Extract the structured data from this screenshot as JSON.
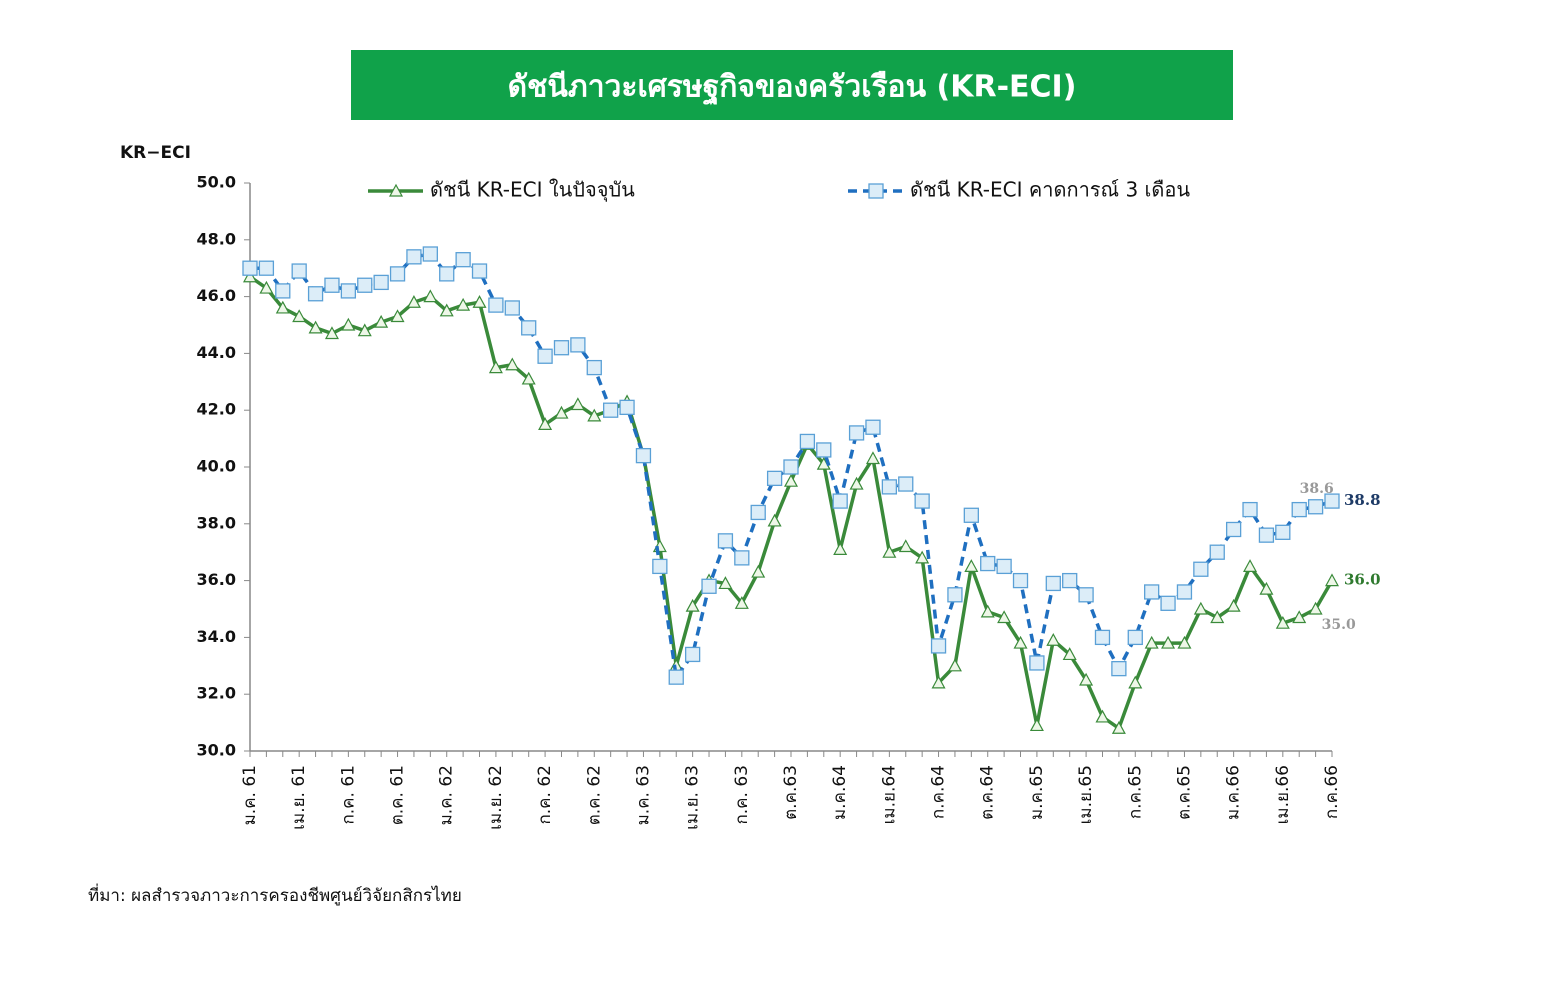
{
  "chart_data": {
    "type": "line",
    "title": "ดัชนีภาวะเศรษฐกิจของครัวเรือน (KR-ECI)",
    "y_label": "KR−ECI",
    "source": "ที่มา: ผลสำรวจภาวะการครองชีพศูนย์วิจัยกสิกรไทย",
    "legend": "top",
    "categories": [
      "ม.ค. 61",
      null,
      null,
      "เม.ย. 61",
      null,
      null,
      "ก.ค. 61",
      null,
      null,
      "ต.ค. 61",
      null,
      null,
      "ม.ค. 62",
      null,
      null,
      "เม.ย. 62",
      null,
      null,
      "ก.ค. 62",
      null,
      null,
      "ต.ค. 62",
      null,
      null,
      "ม.ค. 63",
      null,
      null,
      "เม.ย. 63",
      null,
      null,
      "ก.ค. 63",
      null,
      null,
      "ต.ค.63",
      null,
      null,
      "ม.ค.64",
      null,
      null,
      "เม.ย.64",
      null,
      null,
      "ก.ค.64",
      null,
      null,
      "ต.ค.64",
      null,
      null,
      "ม.ค.65",
      null,
      null,
      "เม.ย.65",
      null,
      null,
      "ก.ค.65",
      null,
      null,
      "ต.ค.65",
      null,
      null,
      "ม.ค.66",
      null,
      null,
      "เม.ย.66",
      null,
      null,
      "ก.ค.66"
    ],
    "series": [
      {
        "name": "ดัชนี KR-ECI ในปัจจุบัน",
        "color": "#3a8a3a",
        "marker": "triangle",
        "dashed": false,
        "values": [
          46.7,
          46.3,
          45.6,
          45.3,
          44.9,
          44.7,
          45.0,
          44.8,
          45.1,
          45.3,
          45.8,
          46.0,
          45.5,
          45.7,
          45.8,
          43.5,
          43.6,
          43.1,
          41.5,
          41.9,
          42.2,
          41.8,
          42.0,
          42.3,
          40.4,
          37.2,
          33.0,
          35.1,
          36.0,
          35.9,
          35.2,
          36.3,
          38.1,
          39.5,
          40.8,
          40.1,
          37.1,
          39.4,
          40.3,
          37.0,
          37.2,
          36.8,
          32.4,
          33.0,
          36.5,
          34.9,
          34.7,
          33.8,
          30.9,
          33.9,
          33.4,
          32.5,
          31.2,
          30.8,
          32.4,
          33.8,
          33.8,
          33.8,
          35.0,
          34.7,
          35.1,
          36.5,
          35.7,
          34.5,
          34.7,
          35.0,
          36.0
        ],
        "value_labels": [
          null,
          null,
          null,
          null,
          null,
          null,
          null,
          null,
          null,
          null,
          null,
          null,
          null,
          null,
          null,
          null,
          null,
          null,
          null,
          null,
          null,
          null,
          null,
          null,
          null,
          null,
          null,
          null,
          null,
          null,
          null,
          null,
          null,
          null,
          null,
          null,
          null,
          null,
          null,
          null,
          null,
          null,
          null,
          null,
          null,
          null,
          null,
          null,
          null,
          null,
          null,
          null,
          null,
          null,
          null,
          null,
          null,
          null,
          null,
          null,
          null,
          null,
          null,
          null,
          null,
          "35.0",
          "36.0"
        ]
      },
      {
        "name": "ดัชนี KR-ECI คาดการณ์ 3 เดือน",
        "color": "#1f6fc0",
        "marker": "square",
        "dashed": true,
        "values": [
          47.0,
          47.0,
          46.2,
          46.9,
          46.1,
          46.4,
          46.2,
          46.4,
          46.5,
          46.8,
          47.4,
          47.5,
          46.8,
          47.3,
          46.9,
          45.7,
          45.6,
          44.9,
          43.9,
          44.2,
          44.3,
          43.5,
          42.0,
          42.1,
          40.4,
          36.5,
          32.6,
          33.4,
          35.8,
          37.4,
          36.8,
          38.4,
          39.6,
          40.0,
          40.9,
          40.6,
          38.8,
          41.2,
          41.4,
          39.3,
          39.4,
          38.8,
          33.7,
          35.5,
          38.3,
          36.6,
          36.5,
          36.0,
          33.1,
          35.9,
          36.0,
          35.5,
          34.0,
          32.9,
          34.0,
          35.6,
          35.2,
          35.6,
          36.4,
          37.0,
          37.8,
          38.5,
          37.6,
          37.7,
          38.5,
          38.6,
          38.8
        ],
        "value_labels": [
          null,
          null,
          null,
          null,
          null,
          null,
          null,
          null,
          null,
          null,
          null,
          null,
          null,
          null,
          null,
          null,
          null,
          null,
          null,
          null,
          null,
          null,
          null,
          null,
          null,
          null,
          null,
          null,
          null,
          null,
          null,
          null,
          null,
          null,
          null,
          null,
          null,
          null,
          null,
          null,
          null,
          null,
          null,
          null,
          null,
          null,
          null,
          null,
          null,
          null,
          null,
          null,
          null,
          null,
          null,
          null,
          null,
          null,
          null,
          null,
          null,
          null,
          null,
          null,
          null,
          "38.6",
          "38.8"
        ]
      }
    ],
    "ylim": [
      30,
      50
    ],
    "yticks": [
      {
        "value": 30,
        "label": "30.0"
      },
      {
        "value": 32,
        "label": "32.0"
      },
      {
        "value": 34,
        "label": "34.0"
      },
      {
        "value": 36,
        "label": "36.0"
      },
      {
        "value": 38,
        "label": "38.0"
      },
      {
        "value": 40,
        "label": "40.0"
      },
      {
        "value": 42,
        "label": "42.0"
      },
      {
        "value": 44,
        "label": "44.0"
      },
      {
        "value": 46,
        "label": "46.0"
      },
      {
        "value": 48,
        "label": "48.0"
      },
      {
        "value": 50,
        "label": "50.0"
      }
    ],
    "grid": false
  }
}
